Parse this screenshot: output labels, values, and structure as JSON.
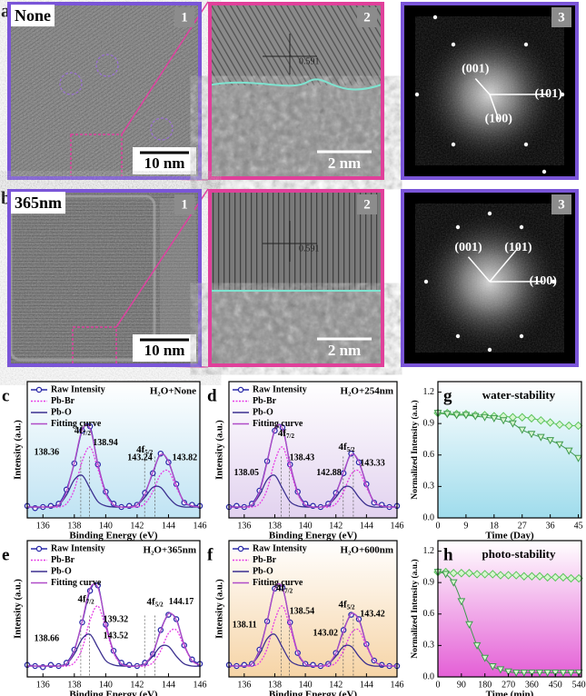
{
  "images": [
    {
      "panel": "a",
      "condition": "None",
      "frames": [
        "1",
        "2",
        "3"
      ],
      "scale_bars": [
        "10 nm",
        "2 nm"
      ],
      "d_spacing": "0.591",
      "planes": [
        "(001)",
        "(101)",
        "(100)"
      ]
    },
    {
      "panel": "b",
      "condition": "365nm",
      "frames": [
        "1",
        "2",
        "3"
      ],
      "scale_bars": [
        "10 nm",
        "2 nm"
      ],
      "d_spacing": "0.591",
      "planes": [
        "(001)",
        "(101)",
        "(100)"
      ]
    }
  ],
  "chart_data": [
    {
      "type": "line",
      "panel": "c",
      "title": "H₂O+None",
      "xlabel": "Binding Energy (eV)",
      "ylabel": "Intensity (a.u.)",
      "x": [
        135,
        135.5,
        136,
        136.5,
        137,
        137.5,
        138,
        138.5,
        139,
        139.5,
        140,
        140.5,
        141,
        141.5,
        142,
        142.5,
        143,
        143.5,
        144,
        144.5,
        145,
        145.5,
        146
      ],
      "xlim": [
        135,
        146
      ],
      "xticks": [
        136,
        138,
        140,
        142,
        144,
        146
      ],
      "ylim": [
        0,
        1.25
      ],
      "peak_labels": [
        [
          "4f",
          "7/2"
        ],
        [
          "4f",
          "5/2"
        ]
      ],
      "energy_labels": [
        "138.36",
        "138.94",
        "143.24",
        "143.82"
      ],
      "series": [
        {
          "name": "Raw Intensity",
          "color": "#2a2aa8",
          "marker": "circle",
          "values": [
            0.11,
            0.09,
            0.1,
            0.11,
            0.13,
            0.26,
            0.5,
            0.8,
            0.84,
            0.49,
            0.24,
            0.13,
            0.1,
            0.11,
            0.12,
            0.23,
            0.41,
            0.59,
            0.51,
            0.31,
            0.14,
            0.12,
            0.11
          ]
        },
        {
          "name": "Pb-Br",
          "color": "#e63ce6",
          "linestyle": "dotted",
          "values": [
            0.1,
            0.1,
            0.1,
            0.1,
            0.1,
            0.13,
            0.26,
            0.52,
            0.65,
            0.45,
            0.22,
            0.12,
            0.1,
            0.1,
            0.1,
            0.13,
            0.24,
            0.4,
            0.43,
            0.28,
            0.15,
            0.11,
            0.1
          ]
        },
        {
          "name": "Pb-O",
          "color": "#3b2f8f",
          "values": [
            0.1,
            0.1,
            0.1,
            0.1,
            0.12,
            0.21,
            0.35,
            0.39,
            0.27,
            0.15,
            0.11,
            0.1,
            0.1,
            0.1,
            0.12,
            0.19,
            0.28,
            0.28,
            0.19,
            0.12,
            0.1,
            0.1,
            0.1
          ]
        },
        {
          "name": "Fitting curve",
          "color": "#b04cc8",
          "values": [
            0.1,
            0.1,
            0.1,
            0.1,
            0.12,
            0.24,
            0.51,
            0.81,
            0.82,
            0.5,
            0.23,
            0.12,
            0.1,
            0.1,
            0.12,
            0.22,
            0.42,
            0.58,
            0.52,
            0.3,
            0.15,
            0.11,
            0.1
          ]
        }
      ]
    },
    {
      "type": "line",
      "panel": "d",
      "title": "H₂O+254nm",
      "xlabel": "Binding Energy (eV)",
      "ylabel": "Intensity (a.u.)",
      "x": [
        135,
        135.5,
        136,
        136.5,
        137,
        137.5,
        138,
        138.5,
        139,
        139.5,
        140,
        140.5,
        141,
        141.5,
        142,
        142.5,
        143,
        143.5,
        144,
        144.5,
        145,
        145.5,
        146
      ],
      "xlim": [
        135,
        146
      ],
      "xticks": [
        136,
        138,
        140,
        142,
        144,
        146
      ],
      "ylim": [
        0,
        1.25
      ],
      "peak_labels": [
        [
          "4f",
          "7/2"
        ],
        [
          "4f",
          "5/2"
        ]
      ],
      "energy_labels": [
        "138.05",
        "138.43",
        "142.88",
        "143.33"
      ],
      "series": [
        {
          "name": "Raw Intensity",
          "color": "#2a2aa8",
          "marker": "circle",
          "values": [
            0.1,
            0.11,
            0.1,
            0.13,
            0.25,
            0.52,
            0.8,
            0.83,
            0.49,
            0.24,
            0.13,
            0.11,
            0.1,
            0.13,
            0.23,
            0.41,
            0.59,
            0.51,
            0.31,
            0.14,
            0.12,
            0.1,
            0.11
          ]
        },
        {
          "name": "Pb-Br",
          "color": "#e63ce6",
          "linestyle": "dotted",
          "values": [
            0.1,
            0.1,
            0.1,
            0.1,
            0.13,
            0.26,
            0.52,
            0.65,
            0.45,
            0.22,
            0.12,
            0.1,
            0.1,
            0.1,
            0.13,
            0.24,
            0.4,
            0.43,
            0.28,
            0.15,
            0.11,
            0.1,
            0.1
          ]
        },
        {
          "name": "Pb-O",
          "color": "#3b2f8f",
          "values": [
            0.1,
            0.1,
            0.1,
            0.12,
            0.21,
            0.35,
            0.39,
            0.27,
            0.15,
            0.11,
            0.1,
            0.1,
            0.1,
            0.12,
            0.19,
            0.28,
            0.28,
            0.19,
            0.12,
            0.1,
            0.1,
            0.1,
            0.1
          ]
        },
        {
          "name": "Fitting curve",
          "color": "#b04cc8",
          "values": [
            0.1,
            0.1,
            0.1,
            0.12,
            0.24,
            0.51,
            0.81,
            0.82,
            0.5,
            0.23,
            0.12,
            0.1,
            0.1,
            0.12,
            0.22,
            0.42,
            0.58,
            0.52,
            0.3,
            0.15,
            0.11,
            0.1,
            0.1
          ]
        }
      ]
    },
    {
      "type": "line",
      "panel": "e",
      "title": "H₂O+365nm",
      "xlabel": "Binding Energy (eV)",
      "ylabel": "Intensity (a.u.)",
      "x": [
        135,
        135.5,
        136,
        136.5,
        137,
        137.5,
        138,
        138.5,
        139,
        139.5,
        140,
        140.5,
        141,
        141.5,
        142,
        142.5,
        143,
        143.5,
        144,
        144.5,
        145,
        145.5,
        146
      ],
      "xlim": [
        135,
        146
      ],
      "xticks": [
        136,
        138,
        140,
        142,
        144,
        146
      ],
      "ylim": [
        0,
        1.25
      ],
      "peak_labels": [
        [
          "4f",
          "7/2"
        ],
        [
          "4f",
          "5/2"
        ]
      ],
      "energy_labels": [
        "138.66",
        "139.32",
        "143.52",
        "144.17"
      ],
      "series": [
        {
          "name": "Raw Intensity",
          "color": "#2a2aa8",
          "marker": "circle",
          "values": [
            0.11,
            0.1,
            0.09,
            0.11,
            0.1,
            0.13,
            0.25,
            0.5,
            0.79,
            0.84,
            0.48,
            0.24,
            0.13,
            0.11,
            0.1,
            0.13,
            0.21,
            0.43,
            0.57,
            0.53,
            0.29,
            0.16,
            0.12
          ]
        },
        {
          "name": "Pb-Br",
          "color": "#e63ce6",
          "linestyle": "dotted",
          "values": [
            0.1,
            0.1,
            0.1,
            0.1,
            0.1,
            0.1,
            0.13,
            0.26,
            0.52,
            0.65,
            0.45,
            0.22,
            0.12,
            0.1,
            0.1,
            0.1,
            0.13,
            0.24,
            0.4,
            0.43,
            0.28,
            0.15,
            0.11
          ]
        },
        {
          "name": "Pb-O",
          "color": "#3b2f8f",
          "values": [
            0.1,
            0.1,
            0.1,
            0.1,
            0.1,
            0.12,
            0.21,
            0.35,
            0.39,
            0.27,
            0.15,
            0.11,
            0.1,
            0.1,
            0.1,
            0.12,
            0.19,
            0.28,
            0.28,
            0.19,
            0.12,
            0.1,
            0.1
          ]
        },
        {
          "name": "Fitting curve",
          "color": "#b04cc8",
          "values": [
            0.1,
            0.1,
            0.1,
            0.1,
            0.1,
            0.12,
            0.24,
            0.51,
            0.81,
            0.82,
            0.5,
            0.23,
            0.12,
            0.1,
            0.1,
            0.12,
            0.22,
            0.42,
            0.58,
            0.52,
            0.3,
            0.15,
            0.11
          ]
        }
      ]
    },
    {
      "type": "line",
      "panel": "f",
      "title": "H₂O+600nm",
      "xlabel": "Binding Energy (eV)",
      "ylabel": "Intensity (a.u.)",
      "x": [
        135,
        135.5,
        136,
        136.5,
        137,
        137.5,
        138,
        138.5,
        139,
        139.5,
        140,
        140.5,
        141,
        141.5,
        142,
        142.5,
        143,
        143.5,
        144,
        144.5,
        145,
        145.5,
        146
      ],
      "xlim": [
        135,
        146
      ],
      "xticks": [
        136,
        138,
        140,
        142,
        144,
        146
      ],
      "ylim": [
        0,
        1.25
      ],
      "peak_labels": [
        [
          "4f",
          "7/2"
        ],
        [
          "4f",
          "5/2"
        ]
      ],
      "energy_labels": [
        "138.11",
        "138.54",
        "143.02",
        "143.42"
      ],
      "series": [
        {
          "name": "Raw Intensity",
          "color": "#2a2aa8",
          "marker": "circle",
          "values": [
            0.11,
            0.1,
            0.11,
            0.12,
            0.25,
            0.51,
            0.81,
            0.82,
            0.5,
            0.22,
            0.12,
            0.11,
            0.1,
            0.12,
            0.22,
            0.43,
            0.57,
            0.53,
            0.3,
            0.15,
            0.11,
            0.1,
            0.1
          ]
        },
        {
          "name": "Pb-Br",
          "color": "#e63ce6",
          "linestyle": "dotted",
          "values": [
            0.1,
            0.1,
            0.1,
            0.1,
            0.13,
            0.26,
            0.52,
            0.65,
            0.45,
            0.22,
            0.12,
            0.1,
            0.1,
            0.1,
            0.13,
            0.24,
            0.4,
            0.43,
            0.28,
            0.15,
            0.11,
            0.1,
            0.1
          ]
        },
        {
          "name": "Pb-O",
          "color": "#3b2f8f",
          "values": [
            0.1,
            0.1,
            0.1,
            0.12,
            0.21,
            0.35,
            0.39,
            0.27,
            0.15,
            0.11,
            0.1,
            0.1,
            0.1,
            0.12,
            0.19,
            0.28,
            0.28,
            0.19,
            0.12,
            0.1,
            0.1,
            0.1,
            0.1
          ]
        },
        {
          "name": "Fitting curve",
          "color": "#b04cc8",
          "values": [
            0.1,
            0.1,
            0.1,
            0.12,
            0.24,
            0.51,
            0.81,
            0.82,
            0.5,
            0.23,
            0.12,
            0.1,
            0.1,
            0.12,
            0.22,
            0.42,
            0.58,
            0.52,
            0.3,
            0.15,
            0.11,
            0.1,
            0.1
          ]
        }
      ]
    },
    {
      "type": "line",
      "panel": "g",
      "title": "water-stability",
      "xlabel": "Time (Day)",
      "ylabel": "Normalized Intensity (a.u.)",
      "x": [
        0,
        3,
        6,
        9,
        12,
        15,
        18,
        21,
        24,
        27,
        30,
        33,
        36,
        39,
        42,
        45
      ],
      "xlim": [
        0,
        46
      ],
      "xticks": [
        0,
        9,
        18,
        27,
        36,
        45
      ],
      "ylim": [
        0,
        1.3
      ],
      "yticks": [
        {
          "value": 0,
          "label": "0.0"
        },
        0.3,
        0.6,
        0.9,
        1.2
      ],
      "series": [
        {
          "color": "#5cc45c",
          "marker": "diamond",
          "values": [
            1.0,
            1.0,
            0.99,
            0.99,
            0.98,
            0.98,
            0.97,
            0.97,
            0.96,
            0.96,
            0.95,
            0.93,
            0.91,
            0.89,
            0.88,
            0.88
          ]
        },
        {
          "color": "#3f9a4f",
          "marker": "triangle",
          "values": [
            1.0,
            0.99,
            0.98,
            0.98,
            0.97,
            0.96,
            0.95,
            0.93,
            0.9,
            0.84,
            0.8,
            0.77,
            0.74,
            0.7,
            0.64,
            0.57
          ]
        }
      ]
    },
    {
      "type": "line",
      "panel": "h",
      "title": "photo-stability",
      "xlabel": "Time (min)",
      "ylabel": "Normalized Intensity (a.u.)",
      "x": [
        0,
        30,
        60,
        90,
        120,
        150,
        180,
        210,
        240,
        270,
        300,
        330,
        360,
        390,
        420,
        450,
        480,
        510,
        540
      ],
      "xlim": [
        0,
        550
      ],
      "xticks": [
        0,
        90,
        180,
        270,
        360,
        450,
        540
      ],
      "ylim": [
        0,
        1.3
      ],
      "yticks": [
        {
          "value": 0,
          "label": "0.0"
        },
        0.3,
        0.6,
        0.9,
        1.2
      ],
      "series": [
        {
          "color": "#5cc45c",
          "marker": "diamond",
          "values": [
            1.0,
            1.0,
            0.99,
            0.99,
            0.99,
            0.98,
            0.98,
            0.98,
            0.97,
            0.97,
            0.97,
            0.96,
            0.96,
            0.96,
            0.95,
            0.95,
            0.95,
            0.94,
            0.94
          ]
        },
        {
          "color": "#3f9a4f",
          "marker": "triangle",
          "values": [
            1.0,
            0.98,
            0.9,
            0.72,
            0.5,
            0.3,
            0.18,
            0.1,
            0.07,
            0.05,
            0.04,
            0.04,
            0.04,
            0.04,
            0.04,
            0.04,
            0.04,
            0.04,
            0.04
          ]
        }
      ]
    }
  ]
}
